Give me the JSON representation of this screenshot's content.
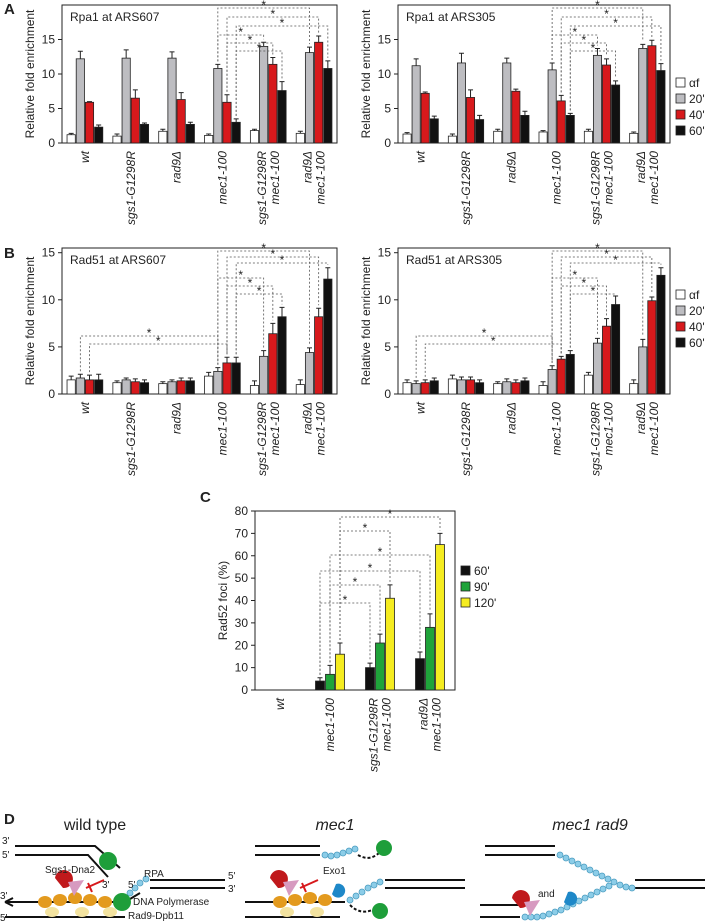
{
  "panel_labels": [
    "A",
    "B",
    "C",
    "D"
  ],
  "chart_data": [
    {
      "type": "bar",
      "title": "Rpa1 at ARS607",
      "ylabel": "Relative fold enrichment",
      "categories": [
        "wt",
        "sgs1-G1298R",
        "rad9Δ",
        "mec1-100",
        [
          "sgs1-G1298R",
          "mec1-100"
        ],
        [
          "rad9Δ",
          "mec1-100"
        ]
      ],
      "series": [
        {
          "name": "αf",
          "color": "#ffffff",
          "values": [
            1.2,
            1.0,
            1.7,
            1.1,
            1.8,
            1.4
          ],
          "errors": [
            0.2,
            0.3,
            0.3,
            0.2,
            0.2,
            0.3
          ]
        },
        {
          "name": "20'",
          "color": "#bdbdc1",
          "values": [
            12.2,
            12.3,
            12.3,
            10.8,
            14.0,
            13.1
          ],
          "errors": [
            1.1,
            1.2,
            0.9,
            0.6,
            0.6,
            0.8
          ]
        },
        {
          "name": "40'",
          "color": "#d7191c",
          "values": [
            5.9,
            6.5,
            6.3,
            5.9,
            11.4,
            14.6
          ],
          "errors": [
            0.1,
            1.2,
            1.0,
            1.1,
            1.0,
            0.9
          ]
        },
        {
          "name": "60'",
          "color": "#111111",
          "values": [
            2.3,
            2.7,
            2.7,
            3.0,
            7.6,
            10.8
          ],
          "errors": [
            0.3,
            0.2,
            0.3,
            0.5,
            1.3,
            1.1
          ]
        }
      ],
      "ylim": [
        0,
        20
      ],
      "yticks": [
        0,
        5,
        10,
        15
      ],
      "significance": [
        "*",
        "*",
        "*",
        "*",
        "*",
        "*"
      ]
    },
    {
      "type": "bar",
      "title": "Rpa1 at ARS305",
      "ylabel": "Relative fold enrichment",
      "categories": [
        "wt",
        "sgs1-G1298R",
        "rad9Δ",
        "mec1-100",
        [
          "sgs1-G1298R",
          "mec1-100"
        ],
        [
          "rad9Δ",
          "mec1-100"
        ]
      ],
      "series": [
        {
          "name": "αf",
          "color": "#ffffff",
          "values": [
            1.3,
            1.0,
            1.7,
            1.6,
            1.7,
            1.4
          ],
          "errors": [
            0.2,
            0.3,
            0.3,
            0.2,
            0.3,
            0.2
          ]
        },
        {
          "name": "20'",
          "color": "#bdbdc1",
          "values": [
            11.2,
            11.6,
            11.6,
            10.6,
            12.7,
            13.7
          ],
          "errors": [
            1.0,
            1.4,
            0.7,
            1.0,
            1.0,
            0.6
          ]
        },
        {
          "name": "40'",
          "color": "#d7191c",
          "values": [
            7.2,
            6.6,
            7.5,
            6.1,
            11.3,
            14.1
          ],
          "errors": [
            0.2,
            1.1,
            0.3,
            0.8,
            0.9,
            0.8
          ]
        },
        {
          "name": "60'",
          "color": "#111111",
          "values": [
            3.5,
            3.4,
            4.0,
            4.0,
            8.4,
            10.5
          ],
          "errors": [
            0.4,
            0.6,
            0.6,
            0.3,
            0.6,
            1.0
          ]
        }
      ],
      "ylim": [
        0,
        20
      ],
      "yticks": [
        0,
        5,
        10,
        15
      ],
      "legend": "outside-right",
      "significance": [
        "*",
        "*",
        "*",
        "*",
        "*",
        "*"
      ]
    },
    {
      "type": "bar",
      "title": "Rad51 at ARS607",
      "ylabel": "Relative fold enrichment",
      "categories": [
        "wt",
        "sgs1-G1298R",
        "rad9Δ",
        "mec1-100",
        [
          "sgs1-G1298R",
          "mec1-100"
        ],
        [
          "rad9Δ",
          "mec1-100"
        ]
      ],
      "series": [
        {
          "name": "αf",
          "color": "#ffffff",
          "values": [
            1.5,
            1.2,
            1.1,
            1.9,
            0.9,
            1.0
          ],
          "errors": [
            0.4,
            0.2,
            0.2,
            0.4,
            0.5,
            0.5
          ]
        },
        {
          "name": "20'",
          "color": "#bdbdc1",
          "values": [
            1.7,
            1.5,
            1.3,
            2.4,
            4.0,
            4.4
          ],
          "errors": [
            0.4,
            0.2,
            0.2,
            0.4,
            0.6,
            0.5
          ]
        },
        {
          "name": "40'",
          "color": "#d7191c",
          "values": [
            1.5,
            1.3,
            1.4,
            3.3,
            6.4,
            8.2
          ],
          "errors": [
            0.5,
            0.3,
            0.3,
            0.6,
            1.1,
            0.9
          ]
        },
        {
          "name": "60'",
          "color": "#111111",
          "values": [
            1.5,
            1.2,
            1.4,
            3.3,
            8.2,
            12.2
          ],
          "errors": [
            0.6,
            0.3,
            0.3,
            0.6,
            1.0,
            1.2
          ]
        }
      ],
      "ylim": [
        0,
        15.5
      ],
      "yticks": [
        0,
        5,
        10,
        15
      ],
      "significance": [
        "*",
        "*",
        "*",
        "*",
        "*",
        "*",
        "*",
        "*"
      ]
    },
    {
      "type": "bar",
      "title": "Rad51 at ARS305",
      "ylabel": "Relative fold enrichment",
      "categories": [
        "wt",
        "sgs1-G1298R",
        "rad9Δ",
        "mec1-100",
        [
          "sgs1-G1298R",
          "mec1-100"
        ],
        [
          "rad9Δ",
          "mec1-100"
        ]
      ],
      "series": [
        {
          "name": "αf",
          "color": "#ffffff",
          "values": [
            1.2,
            1.6,
            1.1,
            0.9,
            2.0,
            1.1
          ],
          "errors": [
            0.3,
            0.4,
            0.2,
            0.4,
            0.3,
            0.4
          ]
        },
        {
          "name": "20'",
          "color": "#bdbdc1",
          "values": [
            1.1,
            1.5,
            1.3,
            2.6,
            5.4,
            5.0
          ],
          "errors": [
            0.3,
            0.3,
            0.3,
            0.4,
            0.5,
            0.8
          ]
        },
        {
          "name": "40'",
          "color": "#d7191c",
          "values": [
            1.2,
            1.5,
            1.2,
            3.7,
            7.2,
            9.9
          ],
          "errors": [
            0.3,
            0.3,
            0.3,
            0.3,
            0.8,
            0.4
          ]
        },
        {
          "name": "60'",
          "color": "#111111",
          "values": [
            1.4,
            1.2,
            1.4,
            4.2,
            9.5,
            12.6
          ],
          "errors": [
            0.3,
            0.3,
            0.3,
            0.4,
            0.9,
            0.8
          ]
        }
      ],
      "ylim": [
        0,
        15.5
      ],
      "yticks": [
        0,
        5,
        10,
        15
      ],
      "legend": "outside-right",
      "significance": [
        "*",
        "*",
        "*",
        "*",
        "*",
        "*",
        "*",
        "*"
      ]
    },
    {
      "type": "bar",
      "ylabel": "Rad52 foci (%)",
      "categories": [
        "wt",
        "mec1-100",
        [
          "sgs1-G1298R",
          "mec1-100"
        ],
        [
          "rad9Δ",
          "mec1-100"
        ]
      ],
      "series": [
        {
          "name": "60'",
          "color": "#111111",
          "values": [
            0,
            4,
            10,
            14
          ],
          "errors": [
            0,
            1.5,
            2,
            3
          ]
        },
        {
          "name": "90'",
          "color": "#1fa33a",
          "values": [
            0,
            7,
            21,
            28
          ],
          "errors": [
            0,
            4,
            4,
            6
          ]
        },
        {
          "name": "120'",
          "color": "#f5ec20",
          "values": [
            0,
            16,
            41,
            65
          ],
          "errors": [
            0,
            5,
            6,
            5
          ]
        }
      ],
      "ylim": [
        0,
        80
      ],
      "yticks": [
        0,
        10,
        20,
        30,
        40,
        50,
        60,
        70,
        80
      ],
      "legend": "outside-right",
      "significance": [
        "*",
        "*",
        "*",
        "*",
        "*",
        "*"
      ]
    }
  ],
  "diagram": {
    "titles": [
      "wild type",
      "mec1",
      "mec1 rad9"
    ],
    "labels": {
      "rpa": "RPA",
      "sgs1_dna2": "Sgs1-Dna2",
      "dna_polymerase": "DNA Polymerase",
      "rad9_dpb11": "Rad9-Dpb11",
      "exo1": "Exo1",
      "and": "and"
    },
    "strand_ends": [
      "3'",
      "5'",
      "3'",
      "5'",
      "3'",
      "5'",
      "3'",
      "5'"
    ]
  }
}
